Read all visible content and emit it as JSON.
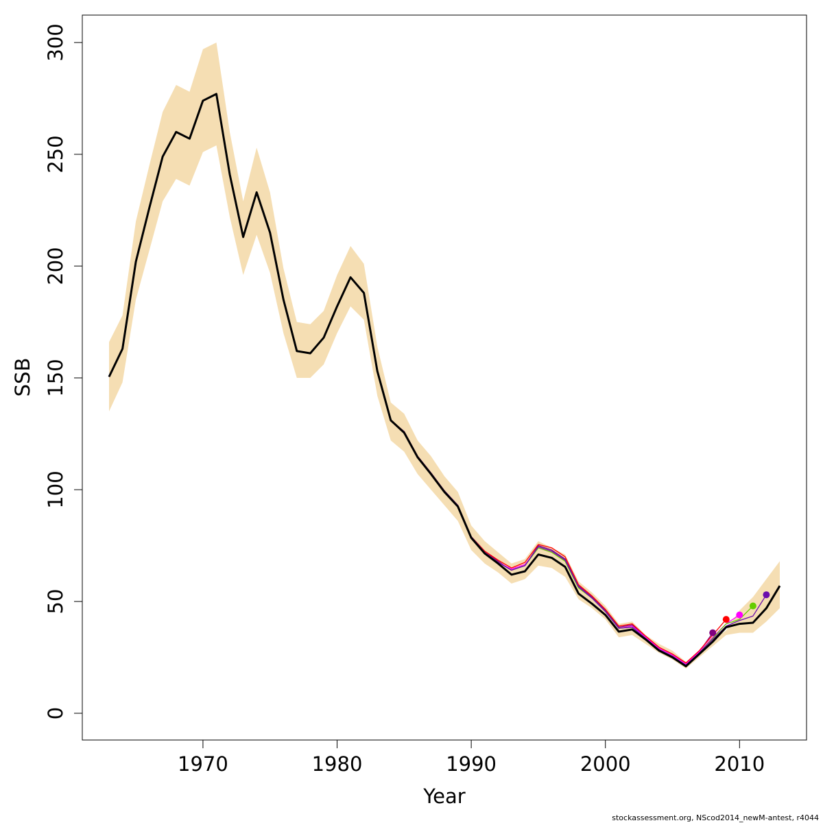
{
  "chart_data": {
    "type": "line",
    "xlabel": "Year",
    "ylabel": "SSB",
    "xlim": [
      1961.2,
      1915.0
    ],
    "ylim": [
      -12,
      312
    ],
    "x_ticks": [
      1970,
      1980,
      1990,
      2000,
      2010
    ],
    "y_ticks": [
      0,
      50,
      100,
      150,
      200,
      250,
      300
    ],
    "grid": false,
    "band_color": "#f5deb3",
    "confidence_band": {
      "x": [
        1963,
        1964,
        1965,
        1966,
        1967,
        1968,
        1969,
        1970,
        1971,
        1972,
        1973,
        1974,
        1975,
        1976,
        1977,
        1978,
        1979,
        1980,
        1981,
        1982,
        1983,
        1984,
        1985,
        1986,
        1987,
        1988,
        1989,
        1990,
        1991,
        1992,
        1993,
        1994,
        1995,
        1996,
        1997,
        1998,
        1999,
        2000,
        2001,
        2002,
        2003,
        2004,
        2005,
        2006,
        2007,
        2008,
        2009,
        2010,
        2011,
        2012,
        2013
      ],
      "lower": [
        135,
        148,
        185,
        207,
        229,
        239,
        236,
        251,
        254,
        222,
        196,
        214,
        197,
        170,
        150,
        150,
        156,
        170,
        182,
        176,
        142,
        122,
        117,
        107,
        100,
        93,
        86,
        73,
        67,
        63,
        58,
        60,
        66,
        65,
        61,
        51,
        47,
        42,
        34,
        35,
        31,
        27,
        24,
        20,
        25,
        30,
        35,
        36,
        36,
        41,
        47
      ],
      "upper": [
        166,
        178,
        220,
        245,
        269,
        281,
        278,
        297,
        300,
        260,
        229,
        253,
        233,
        199,
        175,
        174,
        180,
        196,
        209,
        201,
        164,
        139,
        134,
        122,
        115,
        106,
        99,
        84,
        77,
        72,
        67,
        69,
        77,
        74,
        71,
        59,
        54,
        48,
        40,
        41,
        35,
        31,
        28,
        23,
        28,
        33,
        37,
        46,
        52,
        60,
        68
      ]
    },
    "series": [
      {
        "color": "#7f007f",
        "x": [
          1963,
          1964,
          1965,
          1966,
          1967,
          1968,
          1969,
          1970,
          1971,
          1972,
          1973,
          1974,
          1975,
          1976,
          1977,
          1978,
          1979,
          1980,
          1981,
          1982,
          1983,
          1984,
          1985,
          1986,
          1987,
          1988,
          1989,
          1990,
          1991,
          1992,
          1993,
          1994,
          1995,
          1996,
          1997,
          1998,
          1999,
          2000,
          2001,
          2002,
          2003,
          2004,
          2005,
          2006,
          2007,
          2008
        ],
        "y": [
          150.5,
          163,
          202,
          226,
          249,
          260,
          257,
          274,
          277,
          241,
          213,
          233,
          215,
          185,
          162,
          161,
          168,
          182,
          195,
          188,
          153,
          131,
          126,
          115,
          107.5,
          99.5,
          93,
          79,
          72.5,
          68,
          64,
          66,
          75,
          73,
          69,
          57,
          52,
          46,
          38.5,
          39.5,
          34,
          29,
          26,
          22,
          27.5,
          36
        ]
      },
      {
        "color": "#ff0000",
        "x": [
          1963,
          1964,
          1965,
          1966,
          1967,
          1968,
          1969,
          1970,
          1971,
          1972,
          1973,
          1974,
          1975,
          1976,
          1977,
          1978,
          1979,
          1980,
          1981,
          1982,
          1983,
          1984,
          1985,
          1986,
          1987,
          1988,
          1989,
          1990,
          1991,
          1992,
          1993,
          1994,
          1995,
          1996,
          1997,
          1998,
          1999,
          2000,
          2001,
          2002,
          2003,
          2004,
          2005,
          2006,
          2007,
          2008,
          2009
        ],
        "y": [
          150.5,
          163,
          202,
          226,
          249,
          260,
          257,
          274,
          277,
          241,
          213,
          233,
          215,
          185,
          162,
          161,
          168,
          182,
          195,
          188,
          153,
          131,
          126,
          115,
          107.5,
          99.5,
          93,
          79,
          72.5,
          68.5,
          65,
          67.5,
          75.5,
          74,
          70,
          57.5,
          52.5,
          46.5,
          39,
          40,
          34.5,
          29.5,
          26.5,
          22.5,
          28,
          35,
          42
        ]
      },
      {
        "color": "#ff00ff",
        "x": [
          1963,
          1964,
          1965,
          1966,
          1967,
          1968,
          1969,
          1970,
          1971,
          1972,
          1973,
          1974,
          1975,
          1976,
          1977,
          1978,
          1979,
          1980,
          1981,
          1982,
          1983,
          1984,
          1985,
          1986,
          1987,
          1988,
          1989,
          1990,
          1991,
          1992,
          1993,
          1994,
          1995,
          1996,
          1997,
          1998,
          1999,
          2000,
          2001,
          2002,
          2003,
          2004,
          2005,
          2006,
          2007,
          2008,
          2009,
          2010
        ],
        "y": [
          150.5,
          163,
          202,
          226,
          249,
          260,
          257,
          274,
          277,
          241,
          213,
          233,
          215,
          185,
          162,
          161,
          168,
          182,
          195,
          188,
          153,
          131,
          126,
          115,
          107.5,
          99.5,
          93,
          79,
          72,
          67.5,
          64.5,
          66.5,
          74,
          72,
          68.5,
          56.5,
          51.5,
          45.5,
          38,
          39,
          34,
          29,
          26,
          22,
          27.5,
          34,
          40,
          44
        ]
      },
      {
        "color": "#66cc00",
        "x": [
          1963,
          1964,
          1965,
          1966,
          1967,
          1968,
          1969,
          1970,
          1971,
          1972,
          1973,
          1974,
          1975,
          1976,
          1977,
          1978,
          1979,
          1980,
          1981,
          1982,
          1983,
          1984,
          1985,
          1986,
          1987,
          1988,
          1989,
          1990,
          1991,
          1992,
          1993,
          1994,
          1995,
          1996,
          1997,
          1998,
          1999,
          2000,
          2001,
          2002,
          2003,
          2004,
          2005,
          2006,
          2007,
          2008,
          2009,
          2010,
          2011
        ],
        "y": [
          150.5,
          163,
          202,
          226,
          249,
          260,
          257,
          274,
          277,
          241,
          213,
          233,
          215,
          185,
          162,
          161,
          168,
          182,
          195,
          188,
          153,
          131,
          126,
          115,
          107.5,
          99.5,
          93,
          79,
          72,
          67.5,
          64,
          66,
          74,
          72,
          68,
          56,
          51.5,
          45.5,
          38,
          38.5,
          33.5,
          28.5,
          25.5,
          21.5,
          27,
          33.5,
          40,
          42,
          48
        ]
      },
      {
        "color": "#6a0dad",
        "x": [
          1963,
          1964,
          1965,
          1966,
          1967,
          1968,
          1969,
          1970,
          1971,
          1972,
          1973,
          1974,
          1975,
          1976,
          1977,
          1978,
          1979,
          1980,
          1981,
          1982,
          1983,
          1984,
          1985,
          1986,
          1987,
          1988,
          1989,
          1990,
          1991,
          1992,
          1993,
          1994,
          1995,
          1996,
          1997,
          1998,
          1999,
          2000,
          2001,
          2002,
          2003,
          2004,
          2005,
          2006,
          2007,
          2008,
          2009,
          2010,
          2011,
          2012
        ],
        "y": [
          150.5,
          163,
          202,
          226,
          249,
          260,
          257,
          274,
          277,
          241,
          213,
          233,
          215,
          185,
          162,
          161,
          168,
          182,
          195,
          188,
          153,
          131,
          126,
          115,
          107.5,
          99.5,
          93,
          79,
          72,
          67.5,
          64,
          66,
          74.5,
          72.5,
          68.5,
          56.5,
          51.5,
          45.5,
          38,
          38.5,
          33.5,
          28.5,
          25.5,
          21.5,
          27,
          33,
          39,
          41.5,
          43.5,
          53
        ]
      },
      {
        "color": "#000000",
        "x": [
          1963,
          1964,
          1965,
          1966,
          1967,
          1968,
          1969,
          1970,
          1971,
          1972,
          1973,
          1974,
          1975,
          1976,
          1977,
          1978,
          1979,
          1980,
          1981,
          1982,
          1983,
          1984,
          1985,
          1986,
          1987,
          1988,
          1989,
          1990,
          1991,
          1992,
          1993,
          1994,
          1995,
          1996,
          1997,
          1998,
          1999,
          2000,
          2001,
          2002,
          2003,
          2004,
          2005,
          2006,
          2007,
          2008,
          2009,
          2010,
          2011,
          2012,
          2013
        ],
        "y": [
          150.5,
          163,
          202,
          226,
          249,
          260,
          257,
          274,
          277,
          241,
          213,
          233,
          215,
          185,
          162,
          161,
          168,
          182,
          195,
          188,
          153,
          131,
          125.5,
          114.5,
          107,
          99,
          92.5,
          78.5,
          71.5,
          67,
          62,
          63.5,
          71,
          69.5,
          65.5,
          53.5,
          49,
          44,
          36.5,
          37.5,
          33,
          28,
          25,
          21,
          26.5,
          32,
          38.5,
          40,
          40.5,
          47,
          57
        ]
      }
    ],
    "endpoints": [
      {
        "year": 2008,
        "value": 36,
        "color": "#7f007f"
      },
      {
        "year": 2009,
        "value": 42,
        "color": "#ff0000"
      },
      {
        "year": 2010,
        "value": 44,
        "color": "#ff00ff"
      },
      {
        "year": 2011,
        "value": 48,
        "color": "#66cc00"
      },
      {
        "year": 2012,
        "value": 53,
        "color": "#6a0dad"
      }
    ]
  },
  "footnote": "stockassessment.org, NScod2014_newM-antest, r4044"
}
